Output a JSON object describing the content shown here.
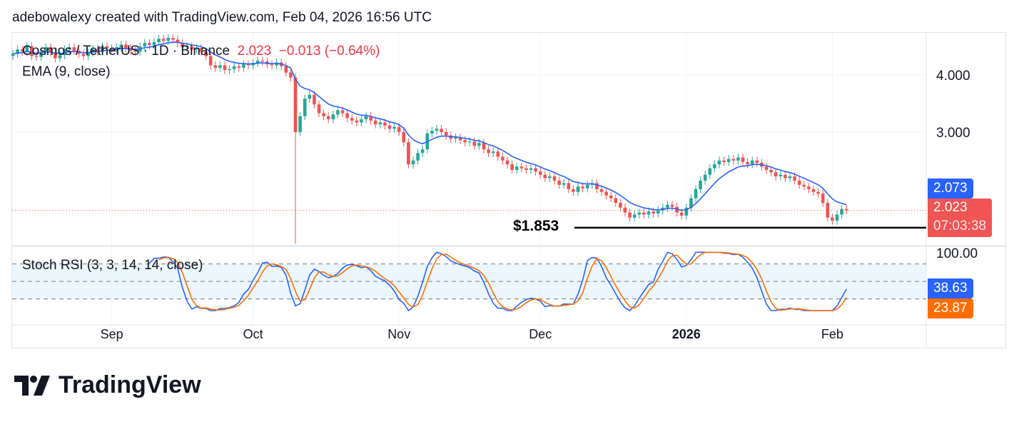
{
  "attribution": "adebowalexy created with TradingView.com, Feb 04, 2026 16:56 UTC",
  "legend": {
    "symbol": "Cosmos / TetherUS · 1D · Binance",
    "last": "2.023",
    "change": "−0.013 (−0.64%)",
    "ema_label": "EMA (9, close)",
    "stoch_label": "Stoch RSI (3, 3, 14, 14, close)"
  },
  "price_tags": {
    "ema": "2.073",
    "last": "2.023",
    "countdown": "07:03:38",
    "stoch_k": "38.63",
    "stoch_d": "23.87"
  },
  "annotation": {
    "label": "$1.853",
    "value": 1.853
  },
  "colors": {
    "up": "#26a69a",
    "down": "#ef5350",
    "ema": "#2962ff",
    "stoch_k": "#2962ff",
    "stoch_d": "#ff6d00",
    "last_tag": "#f05454",
    "annotation": "#000000",
    "stoch_band": "#e3f2fd"
  },
  "logo": "TradingView",
  "chart_data": {
    "type": "candlestick",
    "scale": "log",
    "start_date": "2025-08-11",
    "y_ticks": [
      "4.000",
      "3.000"
    ],
    "y_tick_values": [
      4,
      3
    ],
    "x_ticks": [
      {
        "label": "Sep",
        "date": "2025-09-01"
      },
      {
        "label": "Oct",
        "date": "2025-10-01"
      },
      {
        "label": "Nov",
        "date": "2025-11-01"
      },
      {
        "label": "Dec",
        "date": "2025-12-01"
      },
      {
        "label": "2026",
        "date": "2026-01-01",
        "bold": true
      },
      {
        "label": "Feb",
        "date": "2026-02-01"
      }
    ],
    "closes": [
      4.45,
      4.55,
      4.5,
      4.62,
      4.4,
      4.38,
      4.5,
      4.6,
      4.48,
      4.35,
      4.42,
      4.55,
      4.6,
      4.52,
      4.45,
      4.4,
      4.48,
      4.56,
      4.5,
      4.62,
      4.58,
      4.55,
      4.6,
      4.66,
      4.58,
      4.52,
      4.5,
      4.62,
      4.7,
      4.65,
      4.72,
      4.8,
      4.75,
      4.82,
      4.78,
      4.7,
      4.6,
      4.62,
      4.55,
      4.58,
      4.5,
      4.4,
      4.2,
      4.15,
      4.2,
      4.1,
      4.12,
      4.18,
      4.15,
      4.22,
      4.2,
      4.25,
      4.3,
      4.28,
      4.22,
      4.2,
      4.26,
      4.18,
      4.05,
      3.95,
      3.0,
      3.25,
      3.55,
      3.62,
      3.45,
      3.3,
      3.25,
      3.2,
      3.28,
      3.35,
      3.3,
      3.22,
      3.18,
      3.15,
      3.2,
      3.25,
      3.18,
      3.12,
      3.15,
      3.1,
      3.05,
      3.08,
      3.0,
      2.85,
      2.55,
      2.6,
      2.7,
      2.75,
      2.98,
      3.02,
      3.05,
      3.0,
      2.95,
      2.9,
      2.92,
      2.88,
      2.85,
      2.86,
      2.8,
      2.84,
      2.75,
      2.7,
      2.72,
      2.65,
      2.6,
      2.55,
      2.48,
      2.52,
      2.5,
      2.48,
      2.5,
      2.46,
      2.42,
      2.38,
      2.4,
      2.35,
      2.3,
      2.32,
      2.25,
      2.22,
      2.28,
      2.26,
      2.3,
      2.32,
      2.25,
      2.22,
      2.18,
      2.15,
      2.1,
      2.05,
      2.0,
      1.95,
      1.98,
      2.0,
      1.98,
      2.01,
      1.99,
      2.02,
      2.05,
      2.08,
      2.06,
      2.0,
      1.97,
      2.05,
      2.15,
      2.25,
      2.35,
      2.42,
      2.5,
      2.55,
      2.6,
      2.58,
      2.62,
      2.6,
      2.64,
      2.58,
      2.55,
      2.6,
      2.57,
      2.52,
      2.48,
      2.45,
      2.4,
      2.42,
      2.38,
      2.4,
      2.35,
      2.3,
      2.28,
      2.25,
      2.22,
      2.2,
      2.1,
      1.95,
      1.92,
      1.98,
      2.036,
      2.023
    ],
    "crash_low": {
      "date": "2025-10-10",
      "value": 1.71
    },
    "stoch_rsi": {
      "ticks": [
        "100.00"
      ],
      "levels": [
        80,
        50,
        20
      ],
      "range": [
        0,
        100
      ]
    }
  }
}
